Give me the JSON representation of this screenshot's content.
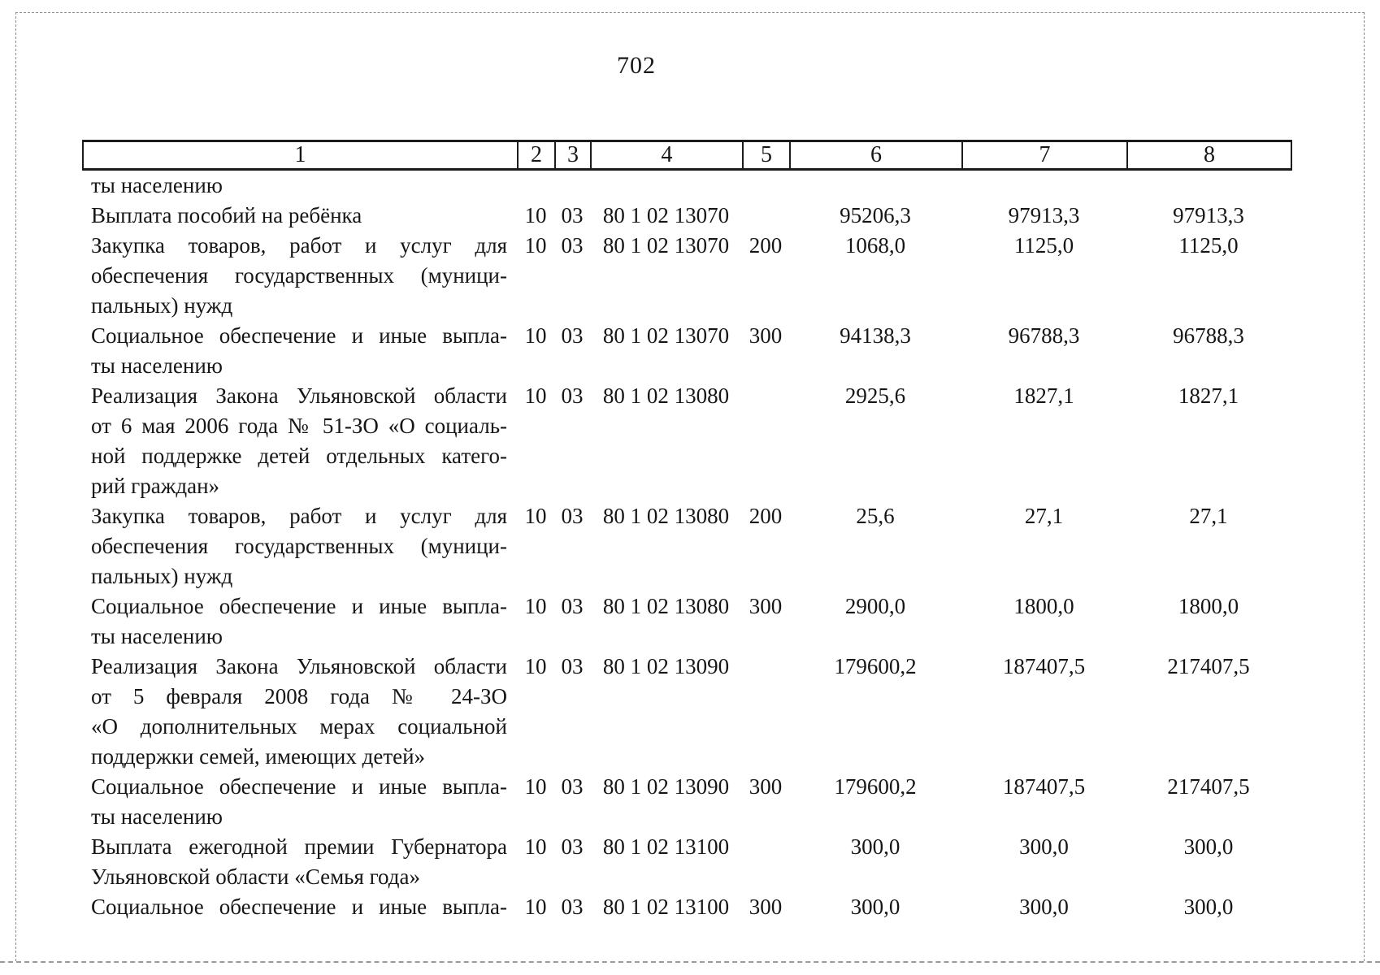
{
  "page": {
    "number": "702"
  },
  "table": {
    "header_cells": [
      "1",
      "2",
      "3",
      "4",
      "5",
      "6",
      "7",
      "8"
    ],
    "rows": [
      {
        "label_lines": [
          {
            "text": "ты населению",
            "fill": false
          }
        ],
        "values": [
          "",
          "",
          "",
          "",
          "",
          "",
          ""
        ]
      },
      {
        "label_lines": [
          {
            "text": "Выплата пособий на ребёнка",
            "fill": false
          }
        ],
        "values": [
          "10",
          "03",
          "80 1 02 13070",
          "",
          "95206,3",
          "97913,3",
          "97913,3"
        ]
      },
      {
        "label_lines": [
          {
            "text": "Закупка товаров, работ и услуг для",
            "fill": true
          },
          {
            "text": "обеспечения государственных (муници-",
            "fill": true
          },
          {
            "text": "пальных) нужд",
            "fill": false
          }
        ],
        "values": [
          "10",
          "03",
          "80 1 02 13070",
          "200",
          "1068,0",
          "1125,0",
          "1125,0"
        ]
      },
      {
        "label_lines": [
          {
            "text": "Социальное обеспечение и иные выпла-",
            "fill": true
          },
          {
            "text": "ты населению",
            "fill": false
          }
        ],
        "values": [
          "10",
          "03",
          "80 1 02 13070",
          "300",
          "94138,3",
          "96788,3",
          "96788,3"
        ]
      },
      {
        "label_lines": [
          {
            "text": "Реализация Закона Ульяновской области",
            "fill": true
          },
          {
            "text": "от 6 мая 2006 года № 51-ЗО «О социаль-",
            "fill": true
          },
          {
            "text": "ной поддержке детей отдельных катего-",
            "fill": true
          },
          {
            "text": "рий граждан»",
            "fill": false
          }
        ],
        "values": [
          "10",
          "03",
          "80 1 02 13080",
          "",
          "2925,6",
          "1827,1",
          "1827,1"
        ]
      },
      {
        "label_lines": [
          {
            "text": "Закупка товаров, работ и услуг для",
            "fill": true
          },
          {
            "text": "обеспечения государственных (муници-",
            "fill": true
          },
          {
            "text": "пальных) нужд",
            "fill": false
          }
        ],
        "values": [
          "10",
          "03",
          "80 1 02 13080",
          "200",
          "25,6",
          "27,1",
          "27,1"
        ]
      },
      {
        "label_lines": [
          {
            "text": "Социальное обеспечение и иные выпла-",
            "fill": true
          },
          {
            "text": "ты населению",
            "fill": false
          }
        ],
        "values": [
          "10",
          "03",
          "80 1 02 13080",
          "300",
          "2900,0",
          "1800,0",
          "1800,0"
        ]
      },
      {
        "label_lines": [
          {
            "text": "Реализация Закона Ульяновской области",
            "fill": true
          },
          {
            "text": "от 5 февраля 2008 года № 24-ЗО",
            "fill": true
          },
          {
            "text": "«О дополнительных мерах социальной",
            "fill": true
          },
          {
            "text": "поддержки семей, имеющих детей»",
            "fill": false
          }
        ],
        "values": [
          "10",
          "03",
          "80 1 02 13090",
          "",
          "179600,2",
          "187407,5",
          "217407,5"
        ]
      },
      {
        "label_lines": [
          {
            "text": "Социальное обеспечение и иные выпла-",
            "fill": true
          },
          {
            "text": "ты населению",
            "fill": false
          }
        ],
        "values": [
          "10",
          "03",
          "80 1 02 13090",
          "300",
          "179600,2",
          "187407,5",
          "217407,5"
        ]
      },
      {
        "label_lines": [
          {
            "text": "Выплата ежегодной премии Губернатора",
            "fill": true
          },
          {
            "text": "Ульяновской области «Семья года»",
            "fill": false
          }
        ],
        "values": [
          "10",
          "03",
          "80 1 02 13100",
          "",
          "300,0",
          "300,0",
          "300,0"
        ]
      },
      {
        "label_lines": [
          {
            "text": "Социальное обеспечение и иные выпла-",
            "fill": true
          }
        ],
        "values": [
          "10",
          "03",
          "80 1 02 13100",
          "300",
          "300,0",
          "300,0",
          "300,0"
        ]
      }
    ]
  }
}
